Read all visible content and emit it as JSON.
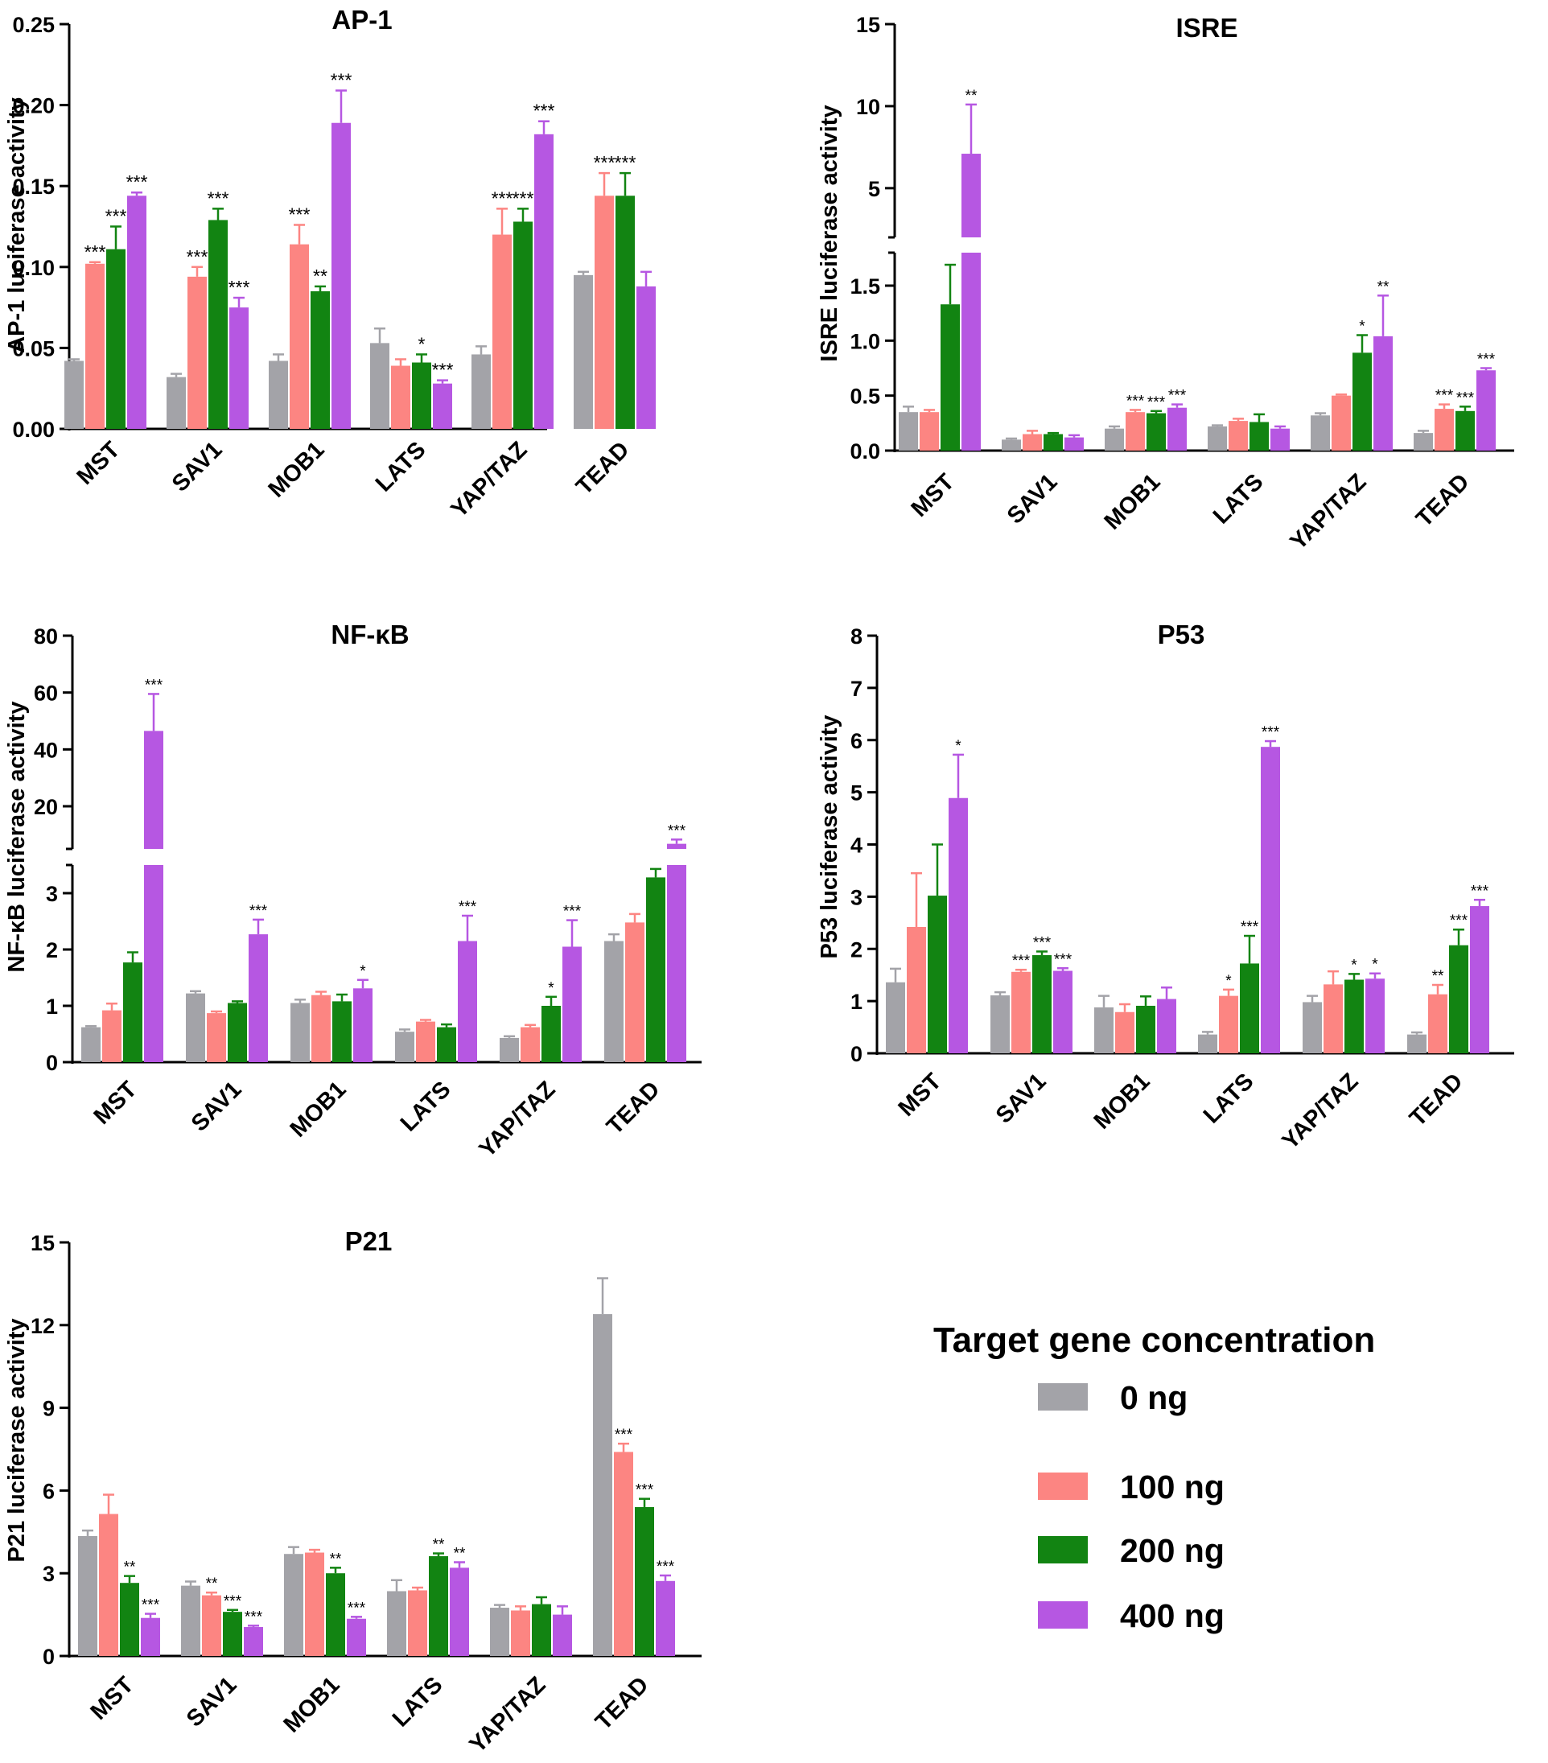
{
  "legend": {
    "title": "Target gene concentration",
    "entries": [
      {
        "label": "0 ng",
        "color": "#a3a3a8"
      },
      {
        "label": "100 ng",
        "color": "#fc8582"
      },
      {
        "label": "200 ng",
        "color": "#128412"
      },
      {
        "label": "400 ng",
        "color": "#b657e2"
      }
    ]
  },
  "chart_data": [
    {
      "type": "bar",
      "title": "AP-1",
      "ylabel": "AP-1 luciferase activity",
      "xlabel": "",
      "categories": [
        "MST",
        "SAV1",
        "MOB1",
        "LATS",
        "YAP/TAZ",
        "TEAD"
      ],
      "ylim": [
        0,
        0.25
      ],
      "yticks": [
        0.0,
        0.05,
        0.1,
        0.15,
        0.2,
        0.25
      ],
      "ytick_labels": [
        "0.00",
        "0.05",
        "0.10",
        "0.15",
        "0.20",
        "0.25"
      ],
      "series": [
        {
          "name": "0 ng",
          "values": [
            0.042,
            0.032,
            0.042,
            0.053,
            0.046,
            0.095
          ],
          "errors": [
            0.001,
            0.002,
            0.004,
            0.009,
            0.005,
            0.002
          ],
          "sig": [
            "",
            "",
            "",
            "",
            "",
            ""
          ]
        },
        {
          "name": "100 ng",
          "values": [
            0.102,
            0.094,
            0.114,
            0.039,
            0.12,
            0.144
          ],
          "errors": [
            0.001,
            0.006,
            0.012,
            0.004,
            0.016,
            0.014
          ],
          "sig": [
            "***",
            "***",
            "***",
            "",
            "***",
            "***"
          ]
        },
        {
          "name": "200 ng",
          "values": [
            0.111,
            0.129,
            0.085,
            0.041,
            0.128,
            0.144
          ],
          "errors": [
            0.014,
            0.007,
            0.003,
            0.005,
            0.008,
            0.014
          ],
          "sig": [
            "***",
            "***",
            "**",
            "*",
            "***",
            "***"
          ]
        },
        {
          "name": "400 ng",
          "values": [
            0.144,
            0.075,
            0.189,
            0.028,
            0.182,
            0.088
          ],
          "errors": [
            0.002,
            0.006,
            0.02,
            0.002,
            0.008,
            0.009
          ],
          "sig": [
            "***",
            "***",
            "***",
            "***",
            "***",
            ""
          ]
        }
      ]
    },
    {
      "type": "bar",
      "title": "ISRE",
      "ylabel": "ISRE luciferase activity",
      "xlabel": "",
      "categories": [
        "MST",
        "SAV1",
        "MOB1",
        "LATS",
        "YAP/TAZ",
        "TEAD"
      ],
      "axis_break": {
        "lower": [
          0,
          1.8
        ],
        "upper": [
          2,
          15
        ]
      },
      "yticks_lower": [
        0.0,
        0.5,
        1.0,
        1.5
      ],
      "ytick_labels_lower": [
        "0.0",
        "0.5",
        "1.0",
        "1.5"
      ],
      "yticks_upper": [
        5,
        10,
        15
      ],
      "ytick_labels_upper": [
        "5",
        "10",
        "15"
      ],
      "series": [
        {
          "name": "0 ng",
          "values": [
            0.35,
            0.1,
            0.2,
            0.22,
            0.32,
            0.16
          ],
          "errors": [
            0.05,
            0.01,
            0.02,
            0.01,
            0.02,
            0.02
          ],
          "sig": [
            "",
            "",
            "",
            "",
            "",
            ""
          ]
        },
        {
          "name": "100 ng",
          "values": [
            0.35,
            0.15,
            0.35,
            0.27,
            0.5,
            0.38
          ],
          "errors": [
            0.02,
            0.03,
            0.02,
            0.02,
            0.01,
            0.04
          ],
          "sig": [
            "",
            "",
            "***",
            "",
            "",
            "***"
          ]
        },
        {
          "name": "200 ng",
          "values": [
            1.33,
            0.15,
            0.34,
            0.26,
            0.89,
            0.36
          ],
          "errors": [
            0.36,
            0.01,
            0.02,
            0.07,
            0.16,
            0.04
          ],
          "sig": [
            "",
            "",
            "***",
            "",
            "*",
            "***"
          ]
        },
        {
          "name": "400 ng",
          "values": [
            7.1,
            0.12,
            0.39,
            0.2,
            1.04,
            0.73
          ],
          "errors": [
            3.0,
            0.02,
            0.03,
            0.02,
            0.37,
            0.02
          ],
          "sig": [
            "**",
            "",
            "***",
            "",
            "**",
            "***"
          ]
        }
      ]
    },
    {
      "type": "bar",
      "title": "NF-κB",
      "ylabel": "NF-κB luciferase activity",
      "xlabel": "",
      "categories": [
        "MST",
        "SAV1",
        "MOB1",
        "LATS",
        "YAP/TAZ",
        "TEAD"
      ],
      "axis_break": {
        "lower": [
          0,
          3.5
        ],
        "upper": [
          5,
          80
        ]
      },
      "yticks_lower": [
        0,
        1,
        2,
        3
      ],
      "ytick_labels_lower": [
        "0",
        "1",
        "2",
        "3"
      ],
      "yticks_upper": [
        20,
        40,
        60,
        80
      ],
      "ytick_labels_upper": [
        "20",
        "40",
        "60",
        "80"
      ],
      "series": [
        {
          "name": "0 ng",
          "values": [
            0.62,
            1.22,
            1.05,
            0.54,
            0.43,
            2.15
          ],
          "errors": [
            0.02,
            0.04,
            0.06,
            0.04,
            0.03,
            0.12
          ],
          "sig": [
            "",
            "",
            "",
            "",
            "",
            ""
          ]
        },
        {
          "name": "100 ng",
          "values": [
            0.92,
            0.87,
            1.19,
            0.72,
            0.62,
            2.48
          ],
          "errors": [
            0.12,
            0.03,
            0.06,
            0.03,
            0.04,
            0.15
          ],
          "sig": [
            "",
            "",
            "",
            "",
            "",
            ""
          ]
        },
        {
          "name": "200 ng",
          "values": [
            1.77,
            1.05,
            1.08,
            0.62,
            1.0,
            3.28
          ],
          "errors": [
            0.18,
            0.03,
            0.12,
            0.05,
            0.16,
            0.15
          ],
          "sig": [
            "",
            "",
            "",
            "",
            "*",
            ""
          ]
        },
        {
          "name": "400 ng",
          "values": [
            46.5,
            2.27,
            1.31,
            2.15,
            2.05,
            6.8
          ],
          "errors": [
            13,
            0.26,
            0.15,
            0.45,
            0.47,
            1.5
          ],
          "sig": [
            "***",
            "***",
            "*",
            "***",
            "***",
            "***"
          ]
        }
      ]
    },
    {
      "type": "bar",
      "title": "P53",
      "ylabel": "P53 luciferase activity",
      "xlabel": "",
      "categories": [
        "MST",
        "SAV1",
        "MOB1",
        "LATS",
        "YAP/TAZ",
        "TEAD"
      ],
      "ylim": [
        0,
        8
      ],
      "yticks": [
        0,
        1,
        2,
        3,
        4,
        5,
        6,
        7,
        8
      ],
      "ytick_labels": [
        "0",
        "1",
        "2",
        "3",
        "4",
        "5",
        "6",
        "7",
        "8"
      ],
      "series": [
        {
          "name": "0 ng",
          "values": [
            1.36,
            1.11,
            0.88,
            0.36,
            0.98,
            0.36
          ],
          "errors": [
            0.26,
            0.06,
            0.22,
            0.05,
            0.12,
            0.04
          ],
          "sig": [
            "",
            "",
            "",
            "",
            "",
            ""
          ]
        },
        {
          "name": "100 ng",
          "values": [
            2.42,
            1.56,
            0.79,
            1.1,
            1.32,
            1.13
          ],
          "errors": [
            1.03,
            0.04,
            0.15,
            0.12,
            0.25,
            0.18
          ],
          "sig": [
            "",
            "***",
            "",
            "*",
            "",
            "**"
          ]
        },
        {
          "name": "200 ng",
          "values": [
            3.02,
            1.88,
            0.91,
            1.72,
            1.41,
            2.07
          ],
          "errors": [
            0.98,
            0.07,
            0.18,
            0.53,
            0.11,
            0.3
          ],
          "sig": [
            "",
            "***",
            "",
            "***",
            "*",
            "***"
          ]
        },
        {
          "name": "400 ng",
          "values": [
            4.89,
            1.58,
            1.04,
            5.87,
            1.43,
            2.82
          ],
          "errors": [
            0.83,
            0.05,
            0.22,
            0.11,
            0.1,
            0.12
          ],
          "sig": [
            "*",
            "***",
            "",
            "***",
            "*",
            "***"
          ]
        }
      ]
    },
    {
      "type": "bar",
      "title": "P21",
      "ylabel": "P21 luciferase activity",
      "xlabel": "",
      "categories": [
        "MST",
        "SAV1",
        "MOB1",
        "LATS",
        "YAP/TAZ",
        "TEAD"
      ],
      "ylim": [
        0,
        15
      ],
      "yticks": [
        0,
        3,
        6,
        9,
        12,
        15
      ],
      "ytick_labels": [
        "0",
        "3",
        "6",
        "9",
        "12",
        "15"
      ],
      "series": [
        {
          "name": "0 ng",
          "values": [
            4.35,
            2.55,
            3.7,
            2.35,
            1.75,
            12.4
          ],
          "errors": [
            0.2,
            0.15,
            0.25,
            0.4,
            0.1,
            1.3
          ],
          "sig": [
            "",
            "",
            "",
            "",
            "",
            ""
          ]
        },
        {
          "name": "100 ng",
          "values": [
            5.15,
            2.2,
            3.75,
            2.38,
            1.65,
            7.4
          ],
          "errors": [
            0.7,
            0.1,
            0.1,
            0.1,
            0.15,
            0.3
          ],
          "sig": [
            "",
            "**",
            "",
            "",
            "",
            "***"
          ]
        },
        {
          "name": "200 ng",
          "values": [
            2.65,
            1.6,
            3.0,
            3.62,
            1.88,
            5.4
          ],
          "errors": [
            0.25,
            0.07,
            0.2,
            0.1,
            0.25,
            0.3
          ],
          "sig": [
            "**",
            "***",
            "**",
            "**",
            "",
            "***"
          ]
        },
        {
          "name": "400 ng",
          "values": [
            1.38,
            1.05,
            1.35,
            3.2,
            1.5,
            2.72
          ],
          "errors": [
            0.15,
            0.05,
            0.07,
            0.2,
            0.3,
            0.2
          ],
          "sig": [
            "***",
            "***",
            "***",
            "**",
            "",
            "***"
          ]
        }
      ]
    }
  ]
}
